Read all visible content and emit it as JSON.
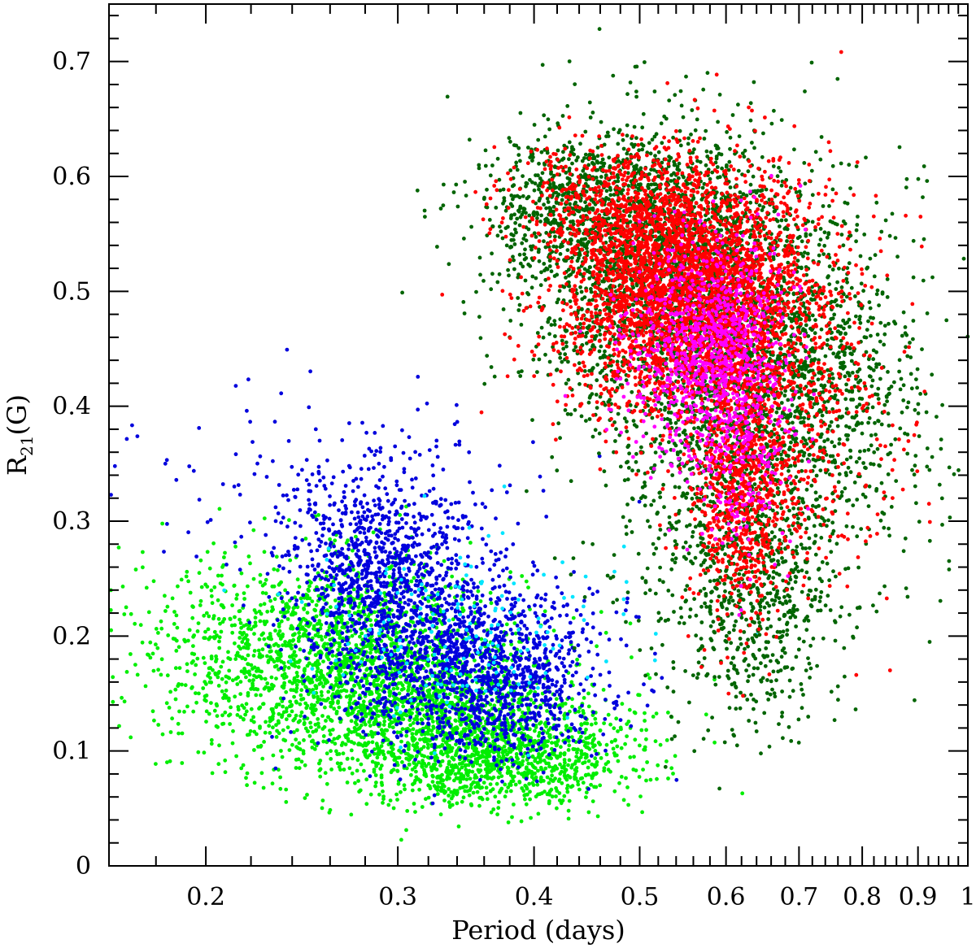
{
  "chart_data": {
    "type": "scatter",
    "xlabel": "Period (days)",
    "ylabel_main": "R",
    "ylabel_sub": "21",
    "ylabel_tail": "(G)",
    "x_scale": "log",
    "xlim": [
      0.163,
      1.0
    ],
    "ylim": [
      0,
      0.75
    ],
    "x_ticks_major": [
      {
        "value": 0.2,
        "label": "0.2"
      },
      {
        "value": 0.3,
        "label": "0.3"
      },
      {
        "value": 0.4,
        "label": "0.4"
      },
      {
        "value": 0.5,
        "label": "0.5"
      },
      {
        "value": 0.6,
        "label": "0.6"
      },
      {
        "value": 0.7,
        "label": "0.7"
      },
      {
        "value": 0.8,
        "label": "0.8"
      },
      {
        "value": 0.9,
        "label": "0.9"
      },
      {
        "value": 1.0,
        "label": "1"
      }
    ],
    "y_ticks_major": [
      {
        "value": 0,
        "label": "0"
      },
      {
        "value": 0.1,
        "label": "0.1"
      },
      {
        "value": 0.2,
        "label": "0.2"
      },
      {
        "value": 0.3,
        "label": "0.3"
      },
      {
        "value": 0.4,
        "label": "0.4"
      },
      {
        "value": 0.5,
        "label": "0.5"
      },
      {
        "value": 0.6,
        "label": "0.6"
      },
      {
        "value": 0.7,
        "label": "0.7"
      }
    ],
    "grid": false,
    "legend": "none",
    "series": [
      {
        "color": "#00ee00",
        "clusters": [
          {
            "x": 0.27,
            "y": 0.18,
            "sx": 0.05,
            "sy": 0.04,
            "n": 1400
          },
          {
            "x": 0.33,
            "y": 0.12,
            "sx": 0.06,
            "sy": 0.03,
            "n": 1200
          },
          {
            "x": 0.38,
            "y": 0.09,
            "sx": 0.05,
            "sy": 0.02,
            "n": 700
          },
          {
            "x": 0.24,
            "y": 0.2,
            "sx": 0.05,
            "sy": 0.04,
            "n": 400
          }
        ]
      },
      {
        "color": "#0000dd",
        "clusters": [
          {
            "x": 0.29,
            "y": 0.26,
            "sx": 0.03,
            "sy": 0.04,
            "n": 900
          },
          {
            "x": 0.34,
            "y": 0.18,
            "sx": 0.05,
            "sy": 0.04,
            "n": 1000
          },
          {
            "x": 0.37,
            "y": 0.15,
            "sx": 0.04,
            "sy": 0.03,
            "n": 500
          },
          {
            "x": 0.27,
            "y": 0.33,
            "sx": 0.06,
            "sy": 0.04,
            "n": 150
          }
        ]
      },
      {
        "color": "#00e5ff",
        "clusters": [
          {
            "x": 0.33,
            "y": 0.2,
            "sx": 0.06,
            "sy": 0.04,
            "n": 160
          }
        ]
      },
      {
        "color": "#006400",
        "clusters": [
          {
            "x": 0.52,
            "y": 0.52,
            "sx": 0.08,
            "sy": 0.06,
            "n": 2200
          },
          {
            "x": 0.62,
            "y": 0.38,
            "sx": 0.09,
            "sy": 0.1,
            "n": 1600
          },
          {
            "x": 0.72,
            "y": 0.42,
            "sx": 0.1,
            "sy": 0.07,
            "n": 700
          },
          {
            "x": 0.44,
            "y": 0.58,
            "sx": 0.05,
            "sy": 0.03,
            "n": 500
          },
          {
            "x": 0.64,
            "y": 0.22,
            "sx": 0.05,
            "sy": 0.05,
            "n": 400
          }
        ]
      },
      {
        "color": "#ff0000",
        "clusters": [
          {
            "x": 0.55,
            "y": 0.5,
            "sx": 0.07,
            "sy": 0.05,
            "n": 3200
          },
          {
            "x": 0.62,
            "y": 0.33,
            "sx": 0.03,
            "sy": 0.06,
            "n": 700
          },
          {
            "x": 0.68,
            "y": 0.4,
            "sx": 0.08,
            "sy": 0.08,
            "n": 600
          },
          {
            "x": 0.48,
            "y": 0.57,
            "sx": 0.06,
            "sy": 0.03,
            "n": 500
          }
        ]
      },
      {
        "color": "#ff00ff",
        "clusters": [
          {
            "x": 0.58,
            "y": 0.45,
            "sx": 0.05,
            "sy": 0.05,
            "n": 900
          },
          {
            "x": 0.62,
            "y": 0.36,
            "sx": 0.03,
            "sy": 0.05,
            "n": 200
          }
        ]
      }
    ]
  }
}
